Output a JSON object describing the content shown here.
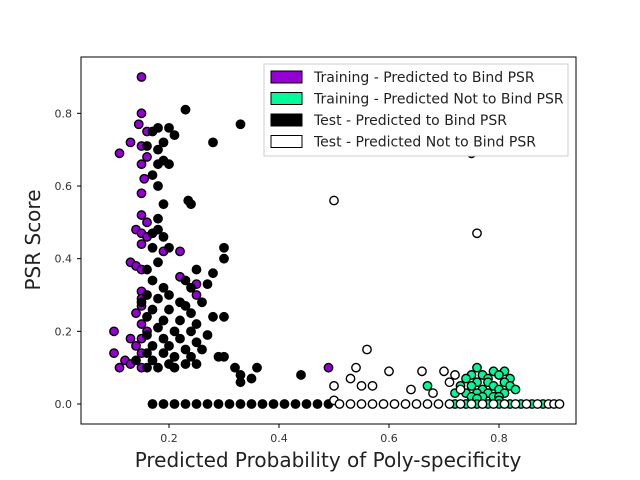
{
  "chart_data": {
    "type": "scatter",
    "title": "",
    "xlabel": "Predicted Probability of Poly-specificity",
    "ylabel": "PSR Score",
    "xlim": [
      0.04,
      0.94
    ],
    "ylim": [
      -0.055,
      0.955
    ],
    "xticks": [
      0.2,
      0.4,
      0.6,
      0.8
    ],
    "xtick_labels": [
      "0.2",
      "0.4",
      "0.6",
      "0.8"
    ],
    "yticks": [
      0.0,
      0.2,
      0.4,
      0.6,
      0.8
    ],
    "ytick_labels": [
      "0.0",
      "0.2",
      "0.4",
      "0.6",
      "0.8"
    ],
    "grid": false,
    "legend_position": "top-right",
    "series": [
      {
        "name": "Training - Predicted to Bind PSR",
        "color": "#9400d3",
        "edge": "#000000",
        "points": [
          [
            0.15,
            0.9
          ],
          [
            0.15,
            0.8
          ],
          [
            0.145,
            0.77
          ],
          [
            0.16,
            0.75
          ],
          [
            0.13,
            0.72
          ],
          [
            0.15,
            0.71
          ],
          [
            0.11,
            0.69
          ],
          [
            0.16,
            0.68
          ],
          [
            0.15,
            0.66
          ],
          [
            0.155,
            0.62
          ],
          [
            0.15,
            0.58
          ],
          [
            0.15,
            0.52
          ],
          [
            0.16,
            0.5
          ],
          [
            0.14,
            0.48
          ],
          [
            0.15,
            0.47
          ],
          [
            0.16,
            0.46
          ],
          [
            0.15,
            0.44
          ],
          [
            0.19,
            0.42
          ],
          [
            0.22,
            0.42
          ],
          [
            0.13,
            0.39
          ],
          [
            0.14,
            0.38
          ],
          [
            0.15,
            0.37
          ],
          [
            0.22,
            0.35
          ],
          [
            0.25,
            0.33
          ],
          [
            0.15,
            0.31
          ],
          [
            0.25,
            0.3
          ],
          [
            0.15,
            0.29
          ],
          [
            0.15,
            0.27
          ],
          [
            0.14,
            0.25
          ],
          [
            0.15,
            0.22
          ],
          [
            0.16,
            0.2
          ],
          [
            0.1,
            0.2
          ],
          [
            0.13,
            0.18
          ],
          [
            0.15,
            0.18
          ],
          [
            0.14,
            0.16
          ],
          [
            0.1,
            0.14
          ],
          [
            0.15,
            0.14
          ],
          [
            0.12,
            0.12
          ],
          [
            0.13,
            0.11
          ],
          [
            0.11,
            0.1
          ],
          [
            0.15,
            0.1
          ],
          [
            0.49,
            0.1
          ]
        ]
      },
      {
        "name": "Training - Predicted Not to Bind PSR",
        "color": "#00fa9a",
        "edge": "#000000",
        "points": [
          [
            0.76,
            0.1
          ],
          [
            0.79,
            0.09
          ],
          [
            0.81,
            0.09
          ],
          [
            0.75,
            0.08
          ],
          [
            0.77,
            0.08
          ],
          [
            0.8,
            0.08
          ],
          [
            0.74,
            0.07
          ],
          [
            0.78,
            0.07
          ],
          [
            0.82,
            0.07
          ],
          [
            0.76,
            0.06
          ],
          [
            0.78,
            0.06
          ],
          [
            0.81,
            0.06
          ],
          [
            0.75,
            0.05
          ],
          [
            0.79,
            0.05
          ],
          [
            0.82,
            0.05
          ],
          [
            0.73,
            0.05
          ],
          [
            0.77,
            0.04
          ],
          [
            0.8,
            0.04
          ],
          [
            0.83,
            0.04
          ],
          [
            0.67,
            0.05
          ],
          [
            0.74,
            0.03
          ],
          [
            0.76,
            0.03
          ],
          [
            0.78,
            0.03
          ],
          [
            0.81,
            0.03
          ],
          [
            0.72,
            0.03
          ],
          [
            0.75,
            0.02
          ],
          [
            0.79,
            0.02
          ],
          [
            0.77,
            0.02
          ],
          [
            0.8,
            0.02
          ],
          [
            0.76,
            0.015
          ],
          [
            0.8,
            0.01
          ],
          [
            0.72,
            0.0
          ],
          [
            0.74,
            0.0
          ],
          [
            0.76,
            0.0
          ],
          [
            0.78,
            0.0
          ],
          [
            0.8,
            0.0
          ],
          [
            0.82,
            0.0
          ],
          [
            0.84,
            0.0
          ],
          [
            0.86,
            0.0
          ],
          [
            0.88,
            0.0
          ]
        ]
      },
      {
        "name": "Test - Predicted to Bind PSR",
        "color": "#000000",
        "edge": "#000000",
        "points": [
          [
            0.23,
            0.81
          ],
          [
            0.33,
            0.77
          ],
          [
            0.18,
            0.76
          ],
          [
            0.2,
            0.76
          ],
          [
            0.17,
            0.75
          ],
          [
            0.21,
            0.74
          ],
          [
            0.28,
            0.72
          ],
          [
            0.19,
            0.72
          ],
          [
            0.16,
            0.71
          ],
          [
            0.18,
            0.7
          ],
          [
            0.2,
            0.66
          ],
          [
            0.18,
            0.66
          ],
          [
            0.19,
            0.67
          ],
          [
            0.17,
            0.63
          ],
          [
            0.18,
            0.6
          ],
          [
            0.19,
            0.55
          ],
          [
            0.235,
            0.56
          ],
          [
            0.24,
            0.55
          ],
          [
            0.18,
            0.51
          ],
          [
            0.17,
            0.47
          ],
          [
            0.18,
            0.48
          ],
          [
            0.19,
            0.46
          ],
          [
            0.17,
            0.43
          ],
          [
            0.2,
            0.43
          ],
          [
            0.3,
            0.43
          ],
          [
            0.3,
            0.4
          ],
          [
            0.18,
            0.39
          ],
          [
            0.16,
            0.37
          ],
          [
            0.25,
            0.37
          ],
          [
            0.28,
            0.36
          ],
          [
            0.17,
            0.34
          ],
          [
            0.23,
            0.34
          ],
          [
            0.27,
            0.33
          ],
          [
            0.19,
            0.32
          ],
          [
            0.24,
            0.32
          ],
          [
            0.16,
            0.3
          ],
          [
            0.2,
            0.3
          ],
          [
            0.18,
            0.29
          ],
          [
            0.22,
            0.28
          ],
          [
            0.26,
            0.28
          ],
          [
            0.15,
            0.28
          ],
          [
            0.23,
            0.27
          ],
          [
            0.17,
            0.26
          ],
          [
            0.2,
            0.26
          ],
          [
            0.24,
            0.25
          ],
          [
            0.28,
            0.24
          ],
          [
            0.3,
            0.24
          ],
          [
            0.16,
            0.24
          ],
          [
            0.19,
            0.23
          ],
          [
            0.22,
            0.23
          ],
          [
            0.25,
            0.22
          ],
          [
            0.18,
            0.21
          ],
          [
            0.21,
            0.2
          ],
          [
            0.24,
            0.2
          ],
          [
            0.27,
            0.19
          ],
          [
            0.16,
            0.19
          ],
          [
            0.19,
            0.18
          ],
          [
            0.22,
            0.18
          ],
          [
            0.25,
            0.17
          ],
          [
            0.17,
            0.16
          ],
          [
            0.2,
            0.16
          ],
          [
            0.23,
            0.15
          ],
          [
            0.26,
            0.15
          ],
          [
            0.29,
            0.13
          ],
          [
            0.3,
            0.13
          ],
          [
            0.16,
            0.14
          ],
          [
            0.19,
            0.14
          ],
          [
            0.21,
            0.13
          ],
          [
            0.24,
            0.13
          ],
          [
            0.14,
            0.12
          ],
          [
            0.17,
            0.12
          ],
          [
            0.2,
            0.11
          ],
          [
            0.23,
            0.11
          ],
          [
            0.25,
            0.11
          ],
          [
            0.18,
            0.1
          ],
          [
            0.21,
            0.1
          ],
          [
            0.16,
            0.1
          ],
          [
            0.32,
            0.1
          ],
          [
            0.36,
            0.1
          ],
          [
            0.33,
            0.08
          ],
          [
            0.35,
            0.07
          ],
          [
            0.33,
            0.06
          ],
          [
            0.44,
            0.08
          ],
          [
            0.17,
            0.0
          ],
          [
            0.19,
            0.0
          ],
          [
            0.21,
            0.0
          ],
          [
            0.23,
            0.0
          ],
          [
            0.25,
            0.0
          ],
          [
            0.27,
            0.0
          ],
          [
            0.29,
            0.0
          ],
          [
            0.31,
            0.0
          ],
          [
            0.33,
            0.0
          ],
          [
            0.35,
            0.0
          ],
          [
            0.37,
            0.0
          ],
          [
            0.39,
            0.0
          ],
          [
            0.41,
            0.0
          ],
          [
            0.43,
            0.0
          ],
          [
            0.45,
            0.0
          ],
          [
            0.47,
            0.0
          ],
          [
            0.49,
            0.0
          ]
        ]
      },
      {
        "name": "Test - Predicted Not to Bind PSR",
        "color": "#ffffff",
        "edge": "#000000",
        "points": [
          [
            0.75,
            0.69
          ],
          [
            0.5,
            0.56
          ],
          [
            0.76,
            0.47
          ],
          [
            0.56,
            0.15
          ],
          [
            0.54,
            0.1
          ],
          [
            0.6,
            0.09
          ],
          [
            0.7,
            0.09
          ],
          [
            0.53,
            0.07
          ],
          [
            0.66,
            0.09
          ],
          [
            0.72,
            0.08
          ],
          [
            0.5,
            0.05
          ],
          [
            0.55,
            0.05
          ],
          [
            0.57,
            0.05
          ],
          [
            0.71,
            0.06
          ],
          [
            0.64,
            0.04
          ],
          [
            0.73,
            0.04
          ],
          [
            0.68,
            0.03
          ],
          [
            0.5,
            0.01
          ],
          [
            0.51,
            0.0
          ],
          [
            0.53,
            0.0
          ],
          [
            0.55,
            0.0
          ],
          [
            0.57,
            0.0
          ],
          [
            0.59,
            0.0
          ],
          [
            0.61,
            0.0
          ],
          [
            0.63,
            0.0
          ],
          [
            0.65,
            0.0
          ],
          [
            0.67,
            0.0
          ],
          [
            0.69,
            0.0
          ],
          [
            0.71,
            0.0
          ],
          [
            0.73,
            0.0
          ],
          [
            0.75,
            0.0
          ],
          [
            0.77,
            0.0
          ],
          [
            0.79,
            0.0
          ],
          [
            0.81,
            0.0
          ],
          [
            0.83,
            0.0
          ],
          [
            0.85,
            0.0
          ],
          [
            0.87,
            0.0
          ],
          [
            0.89,
            0.0
          ],
          [
            0.9,
            0.0
          ],
          [
            0.91,
            0.0
          ]
        ]
      }
    ]
  }
}
